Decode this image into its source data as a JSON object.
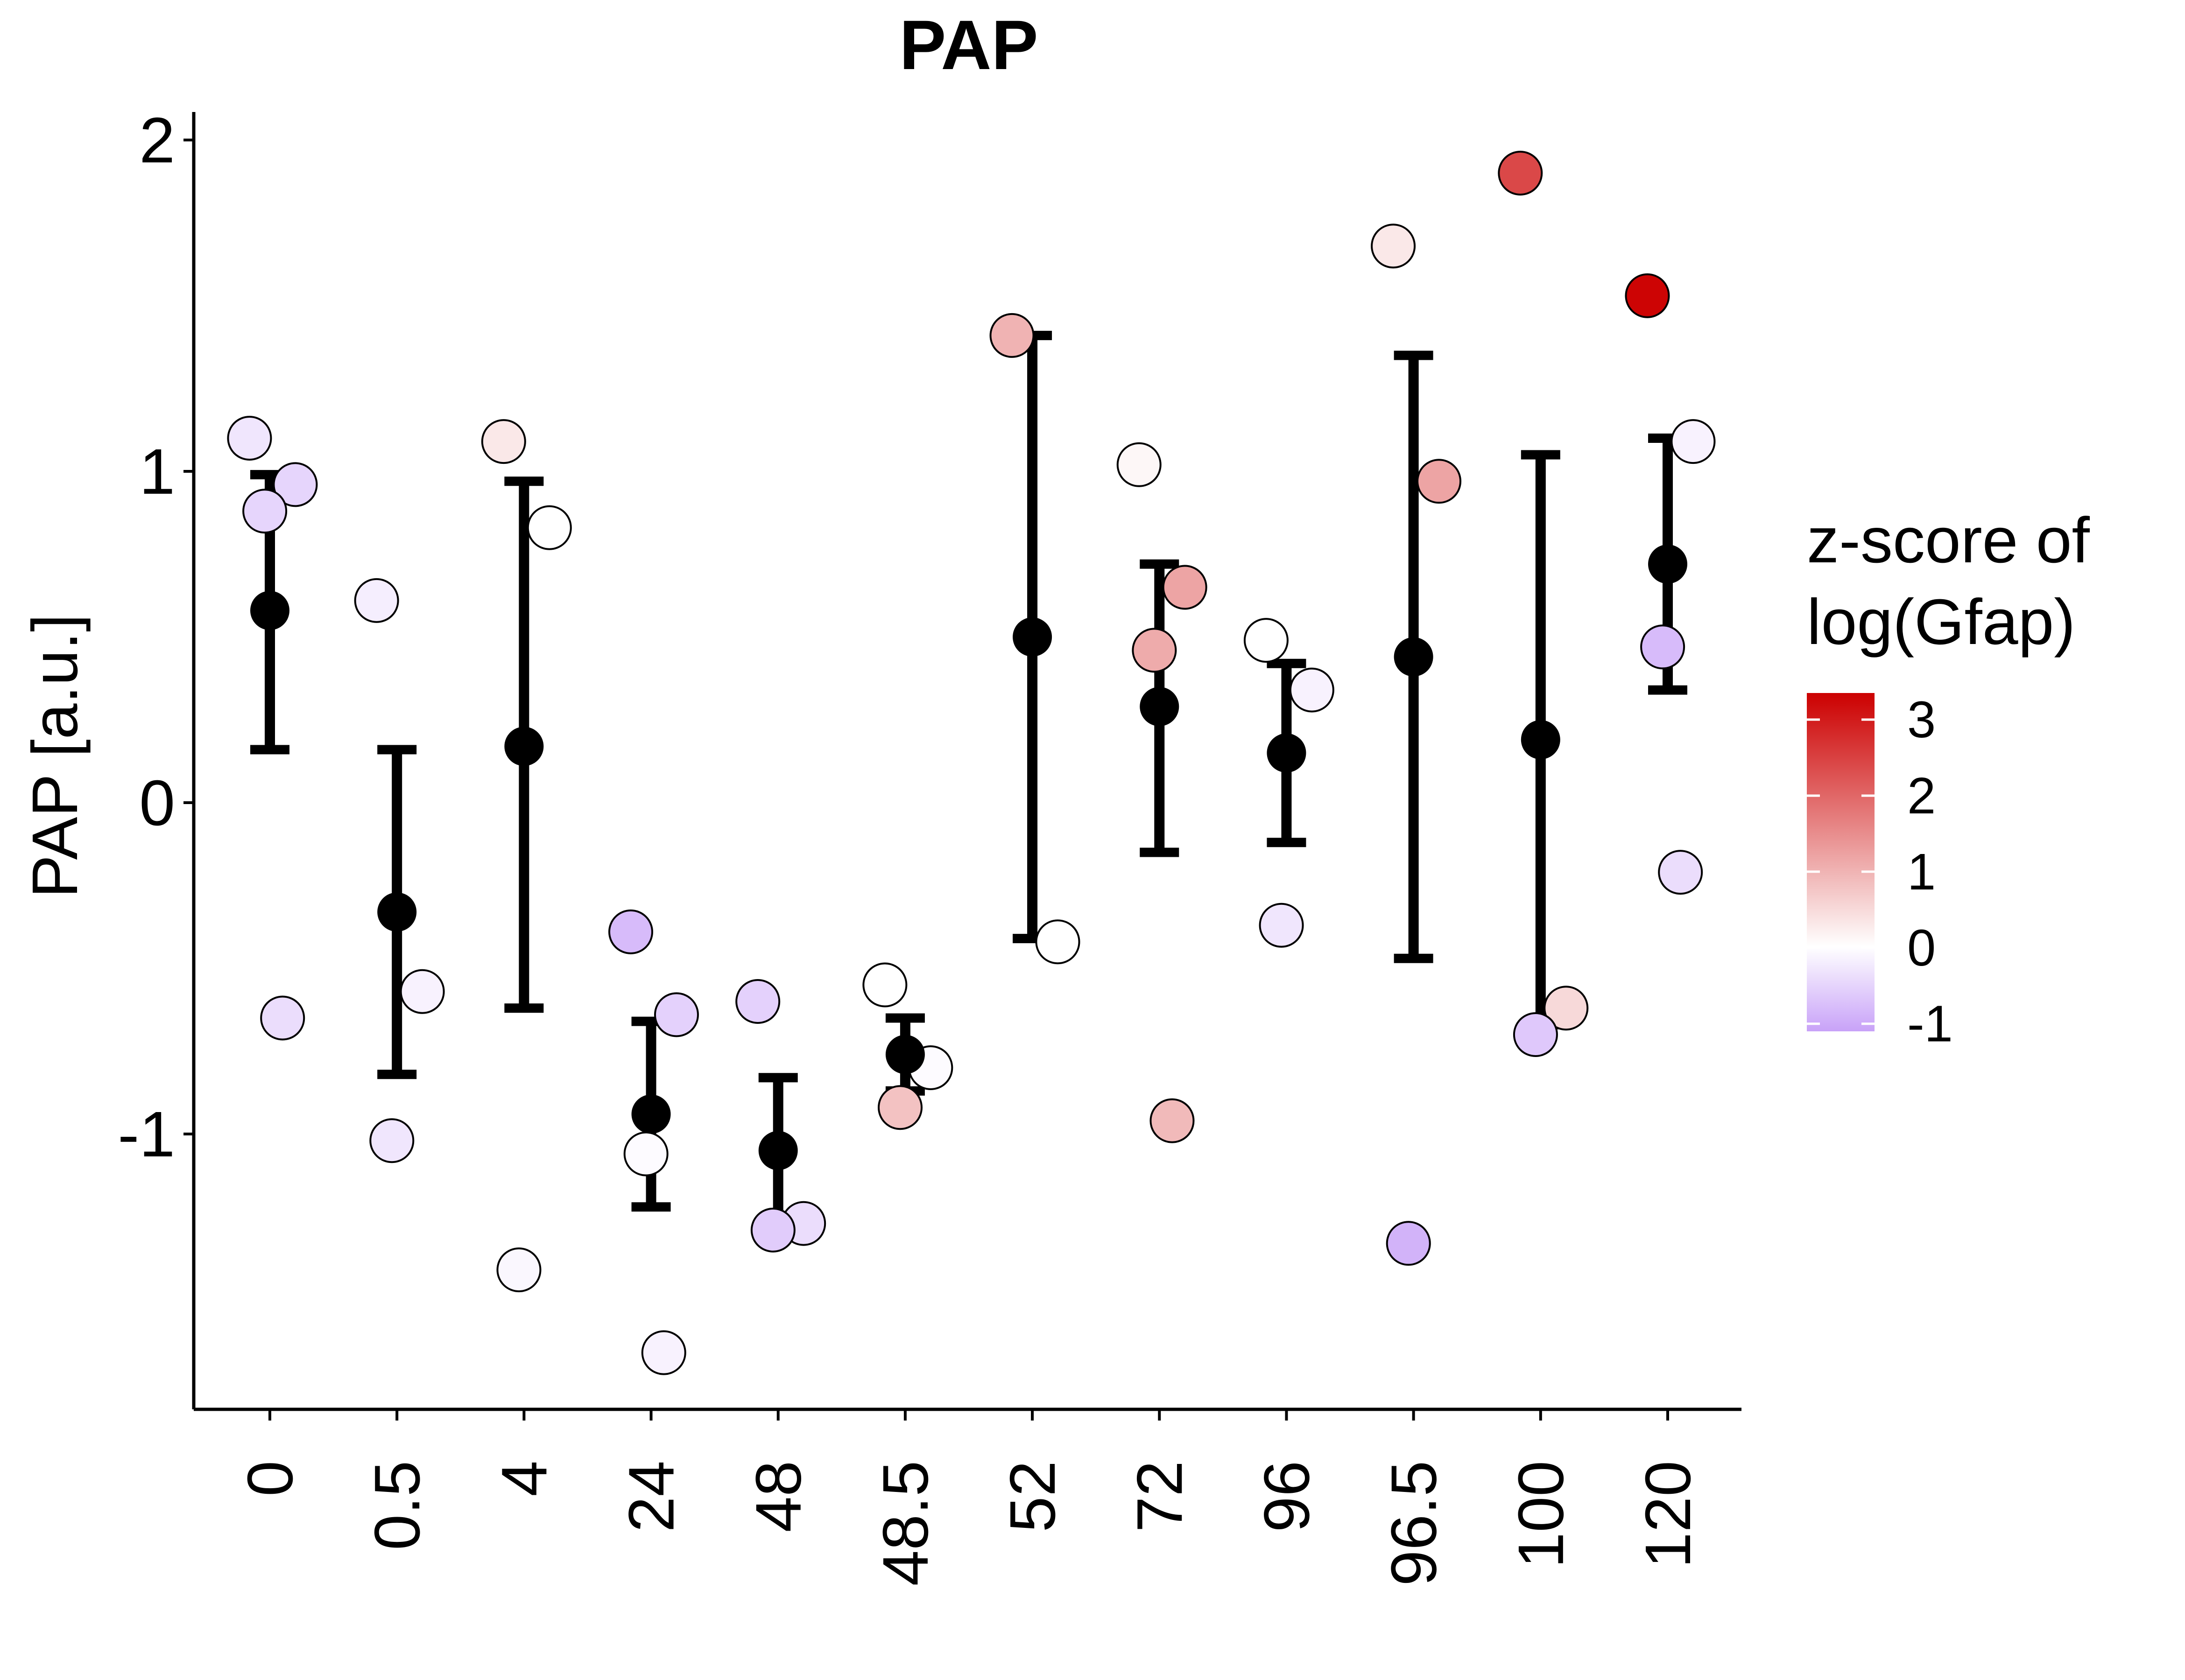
{
  "chart_data": {
    "type": "scatter",
    "title": "PAP",
    "xlabel": "",
    "ylabel": "PAP [a.u.]",
    "ylim": [
      -1.85,
      2.08
    ],
    "yticks": [
      -1,
      0,
      1,
      2
    ],
    "ytick_labels": [
      "-1",
      "0",
      "1",
      "2"
    ],
    "grid": false,
    "legend_position": "right",
    "categories": [
      "0",
      "0.5",
      "4",
      "24",
      "48",
      "48.5",
      "52",
      "72",
      "96",
      "96.5",
      "100",
      "120"
    ],
    "color_scale": {
      "title": "z-score of log(Gfap)",
      "title_lines": [
        "z-score of",
        "log(Gfap)"
      ],
      "min": -1.1,
      "max": 3.35,
      "ticks": [
        3,
        2,
        1,
        0,
        -1
      ],
      "tick_labels": [
        "3",
        "2",
        "1",
        "0",
        "-1"
      ],
      "low_color": "#c8a2f8",
      "mid_color": "#ffffff",
      "high_color": "#cc0000"
    },
    "points": [
      {
        "category": "0",
        "y": 1.1,
        "z": -0.3
      },
      {
        "category": "0",
        "y": 0.96,
        "z": -0.5
      },
      {
        "category": "0",
        "y": 0.88,
        "z": -0.5
      },
      {
        "category": "0",
        "y": -0.65,
        "z": -0.4
      },
      {
        "category": "0.5",
        "y": 0.61,
        "z": -0.2
      },
      {
        "category": "0.5",
        "y": -0.57,
        "z": -0.15
      },
      {
        "category": "0.5",
        "y": -1.02,
        "z": -0.3
      },
      {
        "category": "4",
        "y": 1.09,
        "z": 0.3
      },
      {
        "category": "4",
        "y": 0.83,
        "z": 0.0
      },
      {
        "category": "4",
        "y": -1.41,
        "z": -0.1
      },
      {
        "category": "24",
        "y": -0.39,
        "z": -0.8
      },
      {
        "category": "24",
        "y": -0.64,
        "z": -0.55
      },
      {
        "category": "24",
        "y": -1.06,
        "z": -0.05
      },
      {
        "category": "24",
        "y": -1.66,
        "z": -0.15
      },
      {
        "category": "48",
        "y": -0.6,
        "z": -0.55
      },
      {
        "category": "48",
        "y": -1.27,
        "z": -0.4
      },
      {
        "category": "48",
        "y": -1.29,
        "z": -0.6
      },
      {
        "category": "48.5",
        "y": -0.55,
        "z": 0.0
      },
      {
        "category": "48.5",
        "y": -0.8,
        "z": -0.05
      },
      {
        "category": "48.5",
        "y": -0.92,
        "z": 0.8
      },
      {
        "category": "52",
        "y": 1.41,
        "z": 1.0
      },
      {
        "category": "52",
        "y": -0.42,
        "z": 0.0
      },
      {
        "category": "72",
        "y": 1.02,
        "z": 0.1
      },
      {
        "category": "72",
        "y": 0.65,
        "z": 1.2
      },
      {
        "category": "72",
        "y": 0.46,
        "z": 1.1
      },
      {
        "category": "72",
        "y": -0.96,
        "z": 0.9
      },
      {
        "category": "96",
        "y": 0.49,
        "z": 0.0
      },
      {
        "category": "96",
        "y": 0.34,
        "z": -0.15
      },
      {
        "category": "96",
        "y": -0.37,
        "z": -0.3
      },
      {
        "category": "96.5",
        "y": 1.68,
        "z": 0.3
      },
      {
        "category": "96.5",
        "y": 0.97,
        "z": 1.2
      },
      {
        "category": "96.5",
        "y": -1.33,
        "z": -0.9
      },
      {
        "category": "100",
        "y": 1.9,
        "z": 2.4
      },
      {
        "category": "100",
        "y": -0.62,
        "z": 0.5
      },
      {
        "category": "100",
        "y": -0.7,
        "z": -0.65
      },
      {
        "category": "120",
        "y": 1.53,
        "z": 3.3
      },
      {
        "category": "120",
        "y": 1.09,
        "z": -0.15
      },
      {
        "category": "120",
        "y": 0.47,
        "z": -0.8
      },
      {
        "category": "120",
        "y": -0.21,
        "z": -0.4
      }
    ],
    "summary": [
      {
        "category": "0",
        "mean": 0.58,
        "lower": 0.16,
        "upper": 0.99
      },
      {
        "category": "0.5",
        "mean": -0.33,
        "lower": -0.82,
        "upper": 0.16
      },
      {
        "category": "4",
        "mean": 0.17,
        "lower": -0.62,
        "upper": 0.97
      },
      {
        "category": "24",
        "mean": -0.94,
        "lower": -1.22,
        "upper": -0.66
      },
      {
        "category": "48",
        "mean": -1.05,
        "lower": -1.28,
        "upper": -0.83
      },
      {
        "category": "48.5",
        "mean": -0.76,
        "lower": -0.87,
        "upper": -0.65
      },
      {
        "category": "52",
        "mean": 0.5,
        "lower": -0.41,
        "upper": 1.41
      },
      {
        "category": "72",
        "mean": 0.29,
        "lower": -0.15,
        "upper": 0.72
      },
      {
        "category": "96",
        "mean": 0.15,
        "lower": -0.12,
        "upper": 0.42
      },
      {
        "category": "96.5",
        "mean": 0.44,
        "lower": -0.47,
        "upper": 1.35
      },
      {
        "category": "100",
        "mean": 0.19,
        "lower": -0.67,
        "upper": 1.05
      },
      {
        "category": "120",
        "mean": 0.72,
        "lower": 0.34,
        "upper": 1.1
      }
    ]
  }
}
